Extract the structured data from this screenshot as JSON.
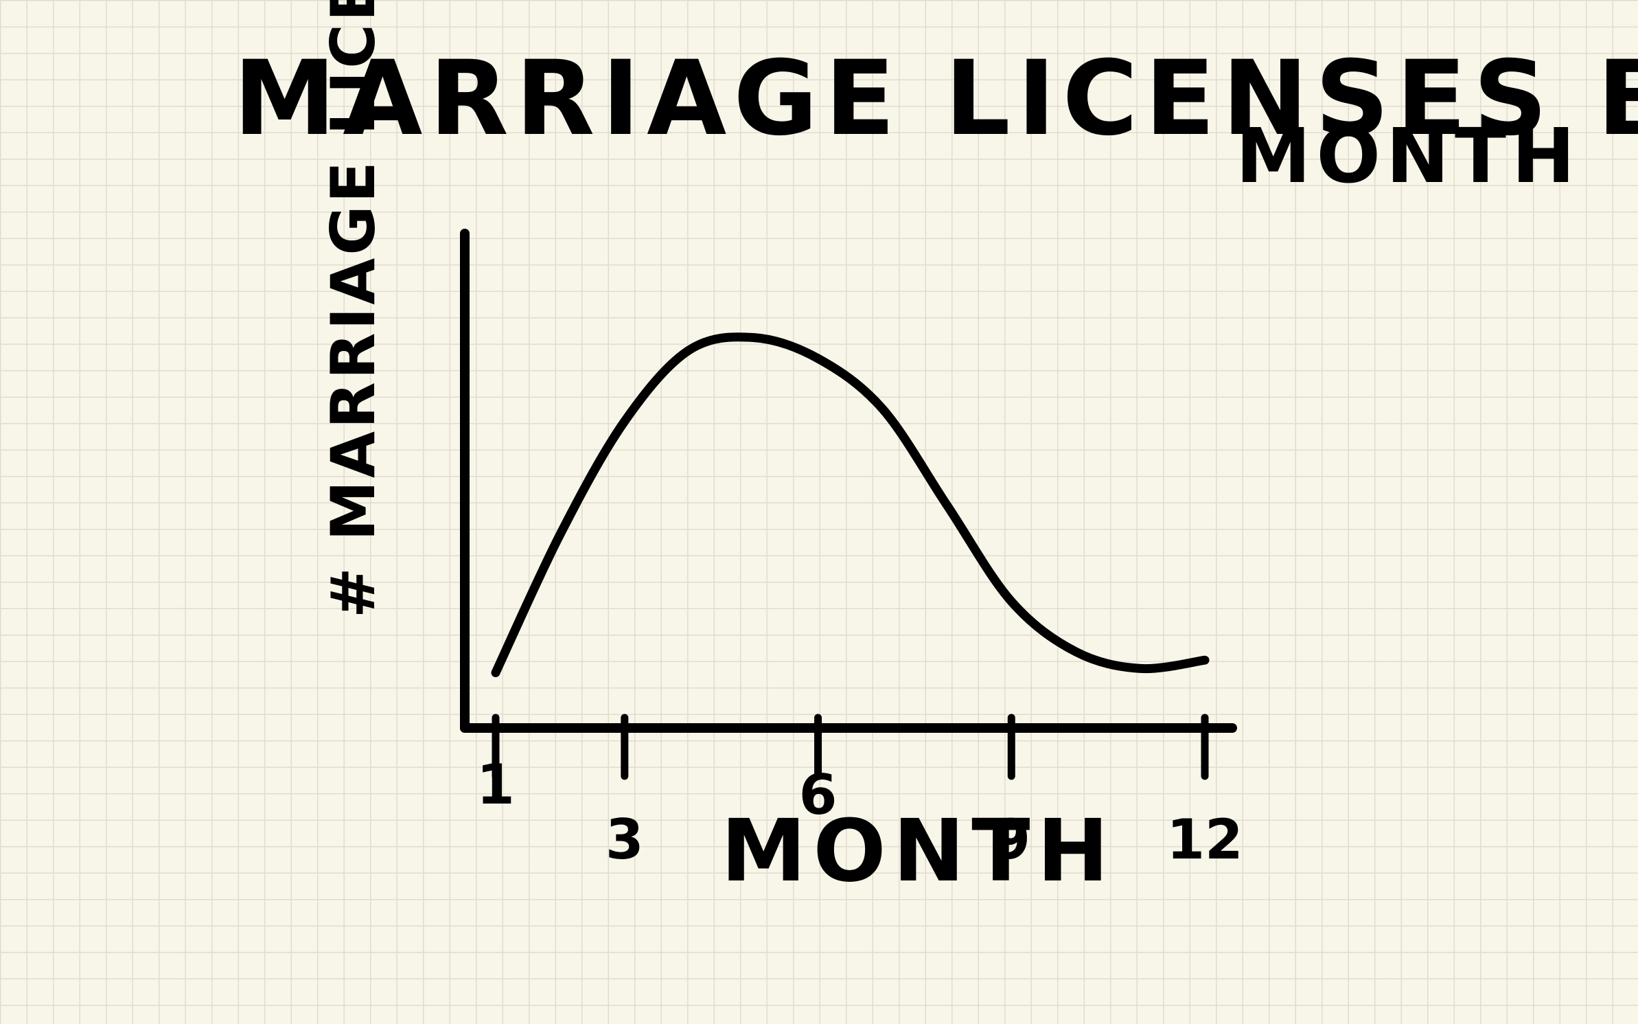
{
  "chart_data": {
    "type": "line",
    "title": "MARRIAGE LICENSES BY",
    "subtitle": "MONTH",
    "xlabel": "MONTH",
    "ylabel": "# MARRIAGE LICENSES",
    "x_ticks": [
      1,
      3,
      6,
      9,
      12
    ],
    "xlim": [
      1,
      12
    ],
    "ylim": [
      0,
      100
    ],
    "grid": false,
    "series": [
      {
        "x": [
          1,
          2,
          3,
          4,
          5,
          6,
          7,
          8,
          9,
          10,
          11,
          12
        ],
        "y": [
          5,
          38,
          65,
          82,
          85,
          80,
          68,
          45,
          22,
          10,
          6,
          8
        ]
      }
    ],
    "colors": {
      "ink": "#000000",
      "paper": "#f8f5e9",
      "grid": "#e0ddd0"
    }
  }
}
